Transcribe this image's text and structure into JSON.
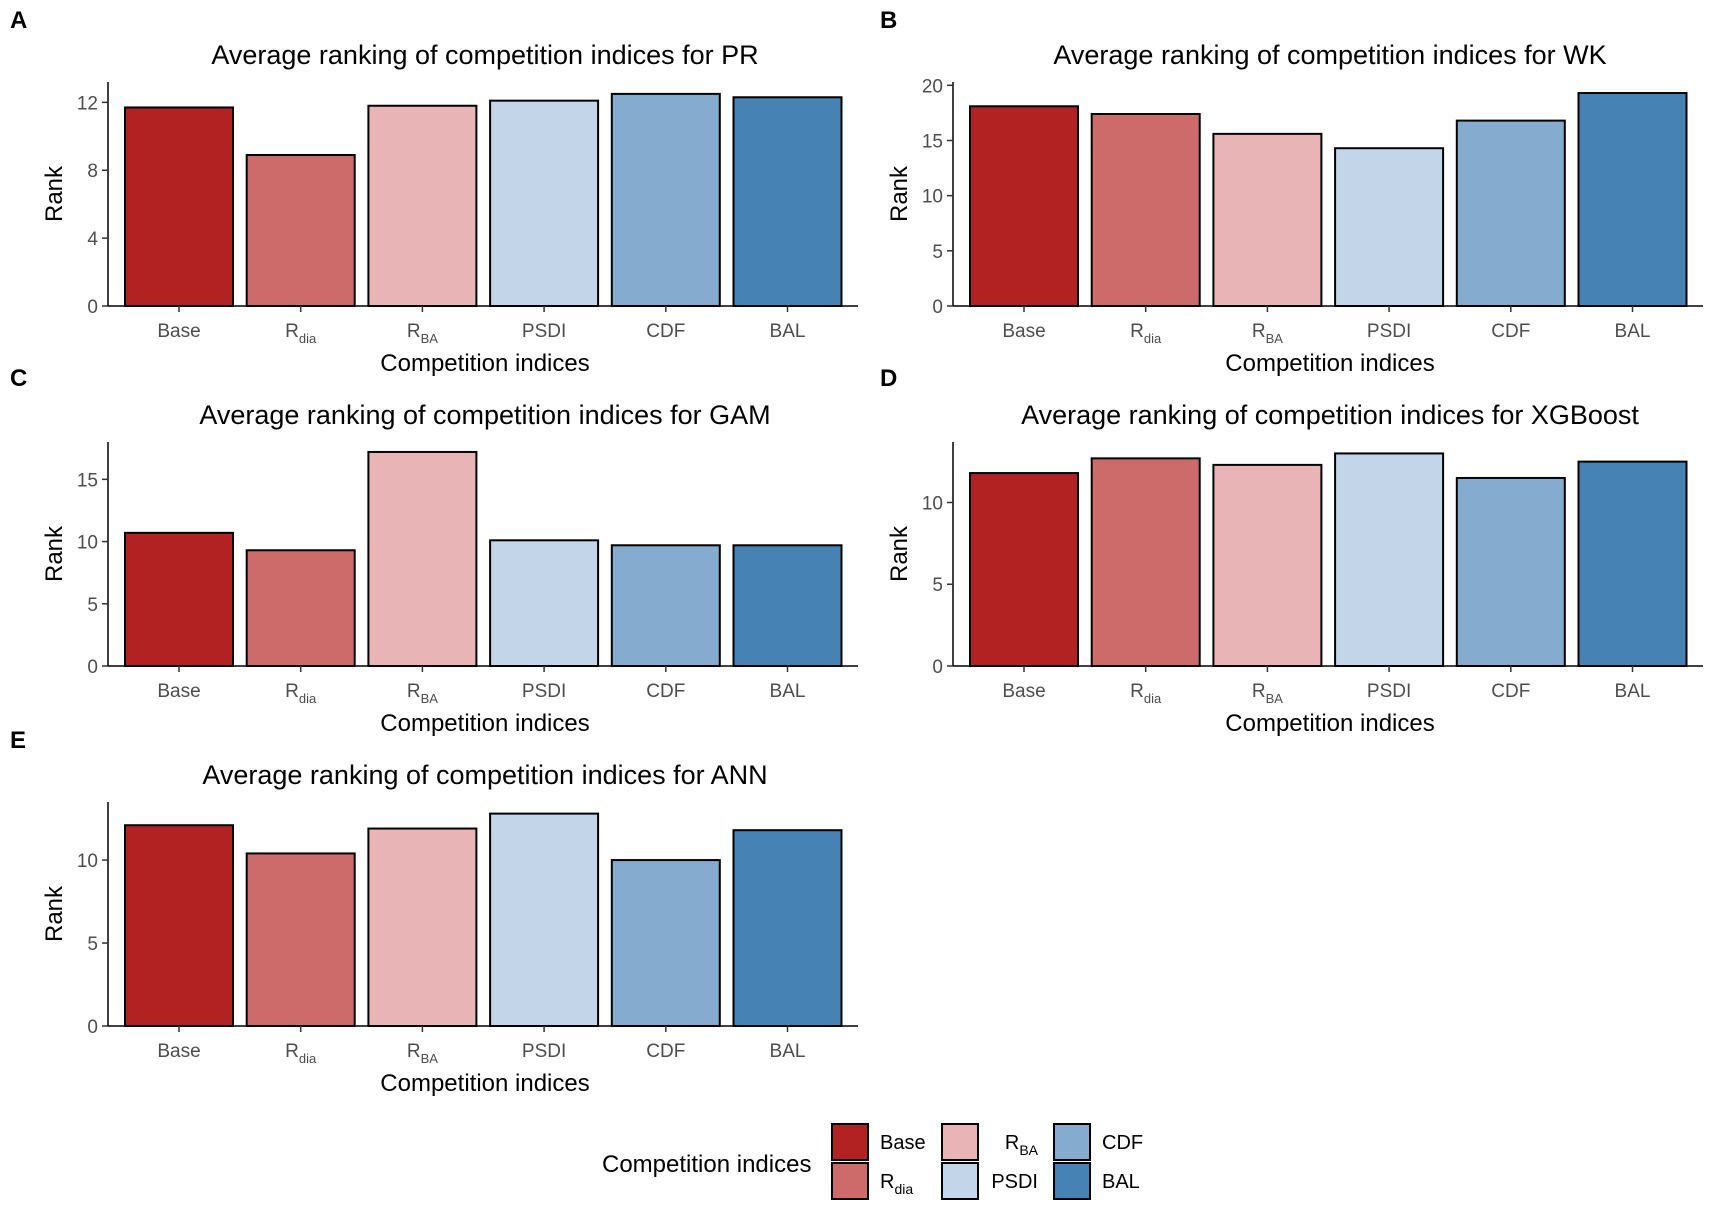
{
  "legend": {
    "title": "Competition indices",
    "entries": [
      {
        "label": "Base",
        "color": "#B22222"
      },
      {
        "label": "R",
        "sub": "dia",
        "color": "#CD6B6B"
      },
      {
        "label": "R",
        "sub": "BA",
        "color": "#E8B4B6"
      },
      {
        "label": "PSDI",
        "color": "#C3D5E8"
      },
      {
        "label": "CDF",
        "color": "#85ABCF"
      },
      {
        "label": "BAL",
        "color": "#4682B4"
      }
    ]
  },
  "chart_data": [
    {
      "panel": "A",
      "type": "bar",
      "title": "Average ranking of competition indices for PR",
      "xlabel": "Competition indices",
      "ylabel": "Rank",
      "categories": [
        {
          "label": "Base"
        },
        {
          "label": "R",
          "sub": "dia"
        },
        {
          "label": "R",
          "sub": "BA"
        },
        {
          "label": "PSDI"
        },
        {
          "label": "CDF"
        },
        {
          "label": "BAL"
        }
      ],
      "values": [
        11.7,
        8.9,
        11.8,
        12.1,
        12.5,
        12.3
      ],
      "ylim": [
        0,
        13.2
      ],
      "yticks": [
        0,
        4,
        8,
        12
      ]
    },
    {
      "panel": "B",
      "type": "bar",
      "title": "Average ranking of competition indices for WK",
      "xlabel": "Competition indices",
      "ylabel": "Rank",
      "categories": [
        {
          "label": "Base"
        },
        {
          "label": "R",
          "sub": "dia"
        },
        {
          "label": "R",
          "sub": "BA"
        },
        {
          "label": "PSDI"
        },
        {
          "label": "CDF"
        },
        {
          "label": "BAL"
        }
      ],
      "values": [
        18.1,
        17.4,
        15.6,
        14.3,
        16.8,
        19.3
      ],
      "ylim": [
        0,
        20.3
      ],
      "yticks": [
        0,
        5,
        10,
        15,
        20
      ]
    },
    {
      "panel": "C",
      "type": "bar",
      "title": "Average ranking of competition indices for GAM",
      "xlabel": "Competition indices",
      "ylabel": "Rank",
      "categories": [
        {
          "label": "Base"
        },
        {
          "label": "R",
          "sub": "dia"
        },
        {
          "label": "R",
          "sub": "BA"
        },
        {
          "label": "PSDI"
        },
        {
          "label": "CDF"
        },
        {
          "label": "BAL"
        }
      ],
      "values": [
        10.7,
        9.3,
        17.2,
        10.1,
        9.7,
        9.7
      ],
      "ylim": [
        0,
        18.0
      ],
      "yticks": [
        0,
        5,
        10,
        15
      ]
    },
    {
      "panel": "D",
      "type": "bar",
      "title": "Average ranking of competition indices for XGBoost",
      "xlabel": "Competition indices",
      "ylabel": "Rank",
      "categories": [
        {
          "label": "Base"
        },
        {
          "label": "R",
          "sub": "dia"
        },
        {
          "label": "R",
          "sub": "BA"
        },
        {
          "label": "PSDI"
        },
        {
          "label": "CDF"
        },
        {
          "label": "BAL"
        }
      ],
      "values": [
        11.8,
        12.7,
        12.3,
        13.0,
        11.5,
        12.5
      ],
      "ylim": [
        0,
        13.7
      ],
      "yticks": [
        0,
        5,
        10
      ]
    },
    {
      "panel": "E",
      "type": "bar",
      "title": "Average ranking of competition indices for ANN",
      "xlabel": "Competition indices",
      "ylabel": "Rank",
      "categories": [
        {
          "label": "Base"
        },
        {
          "label": "R",
          "sub": "dia"
        },
        {
          "label": "R",
          "sub": "BA"
        },
        {
          "label": "PSDI"
        },
        {
          "label": "CDF"
        },
        {
          "label": "BAL"
        }
      ],
      "values": [
        12.1,
        10.4,
        11.9,
        12.8,
        10.0,
        11.8
      ],
      "ylim": [
        0,
        13.5
      ],
      "yticks": [
        0,
        5,
        10
      ]
    }
  ]
}
